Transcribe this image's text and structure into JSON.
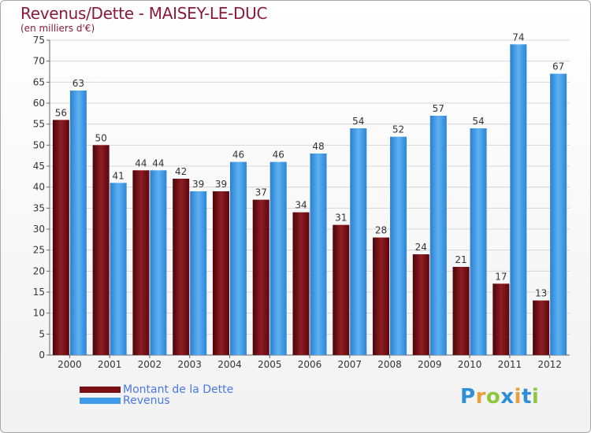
{
  "header": {
    "title": "Revenus/Dette - MAISEY-LE-DUC",
    "subtitle": "(en milliers d'€)"
  },
  "legend": {
    "items": [
      {
        "label": "Montant de la Dette",
        "color": "#7a0f14"
      },
      {
        "label": "Revenus",
        "color": "#3d9be9"
      }
    ]
  },
  "logo": {
    "letters": [
      "P",
      "r",
      "o",
      "x",
      "i",
      "t",
      "i"
    ],
    "colors": [
      "#2f8fd6",
      "#e8a13a",
      "#8fc63e",
      "#2f8fd6",
      "#e8a13a",
      "#2f8fd6",
      "#8fc63e"
    ]
  },
  "chart_data": {
    "type": "bar",
    "categories": [
      "2000",
      "2001",
      "2002",
      "2003",
      "2004",
      "2005",
      "2006",
      "2007",
      "2008",
      "2009",
      "2010",
      "2011",
      "2012"
    ],
    "series": [
      {
        "name": "Montant de la Dette",
        "color": "#7a0f14",
        "values": [
          56,
          50,
          44,
          42,
          39,
          37,
          34,
          31,
          28,
          24,
          21,
          17,
          13
        ]
      },
      {
        "name": "Revenus",
        "color": "#3d9be9",
        "values": [
          63,
          41,
          44,
          39,
          46,
          46,
          48,
          54,
          52,
          57,
          54,
          74,
          67
        ]
      }
    ],
    "ylim": [
      0,
      75
    ],
    "ytick_step": 5,
    "yticks": [
      "0",
      "5",
      "10",
      "15",
      "20",
      "25",
      "30",
      "35",
      "40",
      "45",
      "50",
      "55",
      "60",
      "65",
      "70",
      "75"
    ],
    "grid": true,
    "legend_position": "bottom-left"
  }
}
